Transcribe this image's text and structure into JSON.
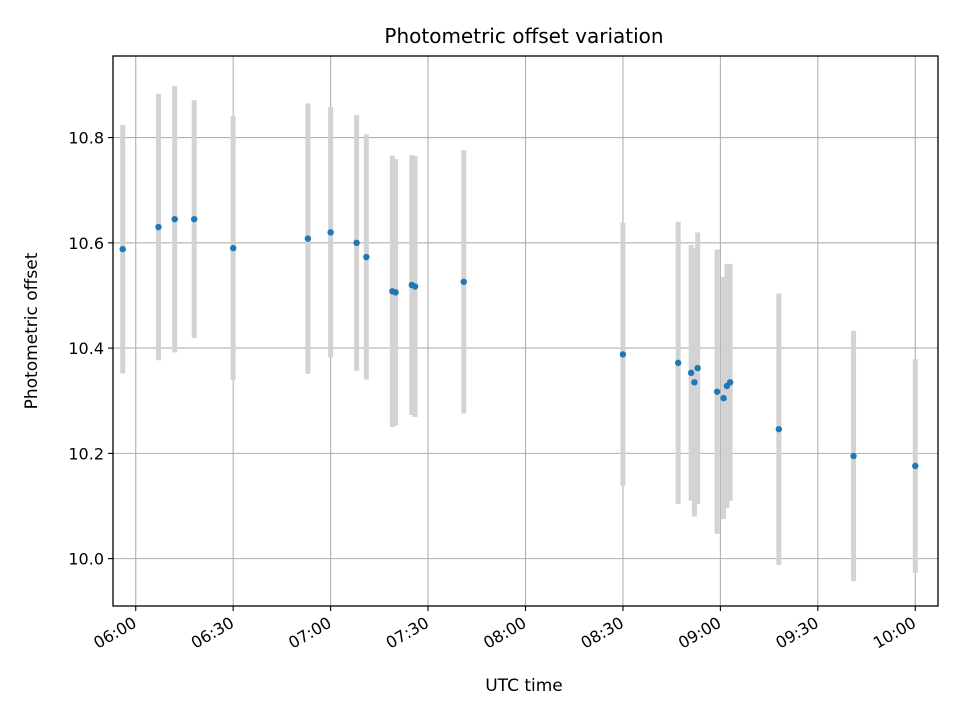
{
  "chart_data": {
    "type": "scatter",
    "title": "Photometric offset variation",
    "xlabel": "UTC time",
    "ylabel": "Photometric offset",
    "xlim": [
      "05:53",
      "10:07"
    ],
    "ylim": [
      9.91,
      10.955
    ],
    "grid": true,
    "x_ticks": [
      "06:00",
      "06:30",
      "07:00",
      "07:30",
      "08:00",
      "08:30",
      "09:00",
      "09:30",
      "10:00"
    ],
    "y_ticks": [
      "10.0",
      "10.2",
      "10.4",
      "10.6",
      "10.8"
    ],
    "colors": {
      "point": "#1f77b4",
      "errorbar": "#d3d3d3",
      "grid": "#b0b0b0"
    },
    "series": [
      {
        "points": [
          {
            "x": "05:56",
            "y": 10.588,
            "yerr": 0.236
          },
          {
            "x": "06:07",
            "y": 10.63,
            "yerr": 0.253
          },
          {
            "x": "06:12",
            "y": 10.645,
            "yerr": 0.253
          },
          {
            "x": "06:18",
            "y": 10.645,
            "yerr": 0.226
          },
          {
            "x": "06:30",
            "y": 10.59,
            "yerr": 0.251
          },
          {
            "x": "06:53",
            "y": 10.608,
            "yerr": 0.257
          },
          {
            "x": "07:00",
            "y": 10.62,
            "yerr": 0.238
          },
          {
            "x": "07:08",
            "y": 10.6,
            "yerr": 0.243
          },
          {
            "x": "07:11",
            "y": 10.573,
            "yerr": 0.233
          },
          {
            "x": "07:19",
            "y": 10.508,
            "yerr": 0.258
          },
          {
            "x": "07:20",
            "y": 10.506,
            "yerr": 0.253
          },
          {
            "x": "07:25",
            "y": 10.52,
            "yerr": 0.247
          },
          {
            "x": "07:26",
            "y": 10.517,
            "yerr": 0.248
          },
          {
            "x": "07:41",
            "y": 10.526,
            "yerr": 0.25
          },
          {
            "x": "08:30",
            "y": 10.388,
            "yerr": 0.25
          },
          {
            "x": "08:47",
            "y": 10.372,
            "yerr": 0.268
          },
          {
            "x": "08:51",
            "y": 10.353,
            "yerr": 0.243
          },
          {
            "x": "08:52",
            "y": 10.335,
            "yerr": 0.255
          },
          {
            "x": "08:53",
            "y": 10.362,
            "yerr": 0.258
          },
          {
            "x": "08:59",
            "y": 10.317,
            "yerr": 0.27
          },
          {
            "x": "09:01",
            "y": 10.305,
            "yerr": 0.23
          },
          {
            "x": "09:02",
            "y": 10.328,
            "yerr": 0.232
          },
          {
            "x": "09:03",
            "y": 10.335,
            "yerr": 0.225
          },
          {
            "x": "09:18",
            "y": 10.246,
            "yerr": 0.258
          },
          {
            "x": "09:41",
            "y": 10.195,
            "yerr": 0.238
          },
          {
            "x": "10:00",
            "y": 10.176,
            "yerr": 0.203
          }
        ]
      }
    ]
  }
}
